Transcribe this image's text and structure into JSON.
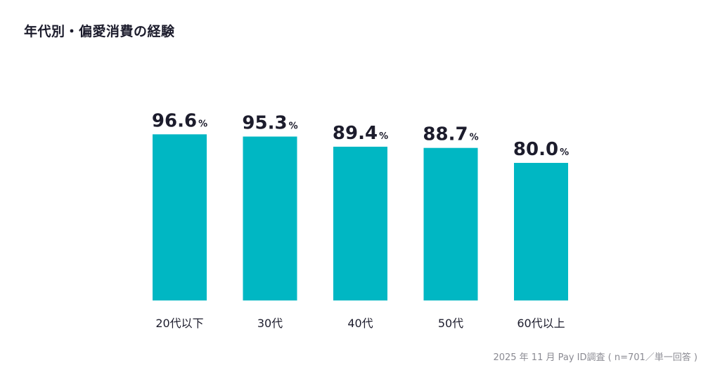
{
  "title": "年代別・偏愛消費の経験",
  "source": "2025 年 11 月 Pay ID調査 ( n=701／単一回答 )",
  "colors": {
    "bar": "#00b7c3",
    "text": "#1c1c2c",
    "source": "#8a8a92"
  },
  "chart_data": {
    "type": "bar",
    "title": "年代別・偏愛消費の経験",
    "categories": [
      "20代以下",
      "30代",
      "40代",
      "50代",
      "60代以上"
    ],
    "values": [
      96.6,
      95.3,
      89.4,
      88.7,
      80.0
    ],
    "value_labels": [
      "96.6",
      "95.3",
      "89.4",
      "88.7",
      "80.0"
    ],
    "unit": "%",
    "xlabel": "",
    "ylabel": "",
    "ylim": [
      0,
      100
    ],
    "grid": false
  }
}
